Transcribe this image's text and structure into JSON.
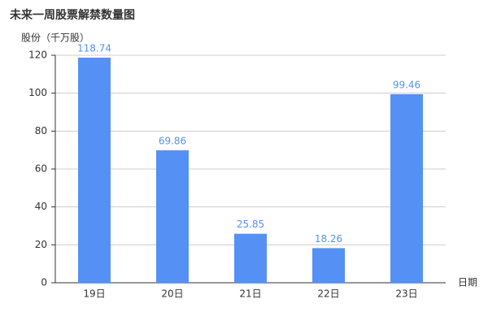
{
  "chart_data": {
    "type": "bar",
    "title": "未来一周股票解禁数量图",
    "y_label": "股份（千万股）",
    "x_label": "日期",
    "categories": [
      "19日",
      "20日",
      "21日",
      "22日",
      "23日"
    ],
    "values": [
      118.74,
      69.86,
      25.85,
      18.26,
      99.46
    ],
    "color": "#5591f5",
    "ylim": [
      0,
      120
    ],
    "yticks": [
      0,
      20,
      40,
      60,
      80,
      100,
      120
    ],
    "grid": true
  }
}
